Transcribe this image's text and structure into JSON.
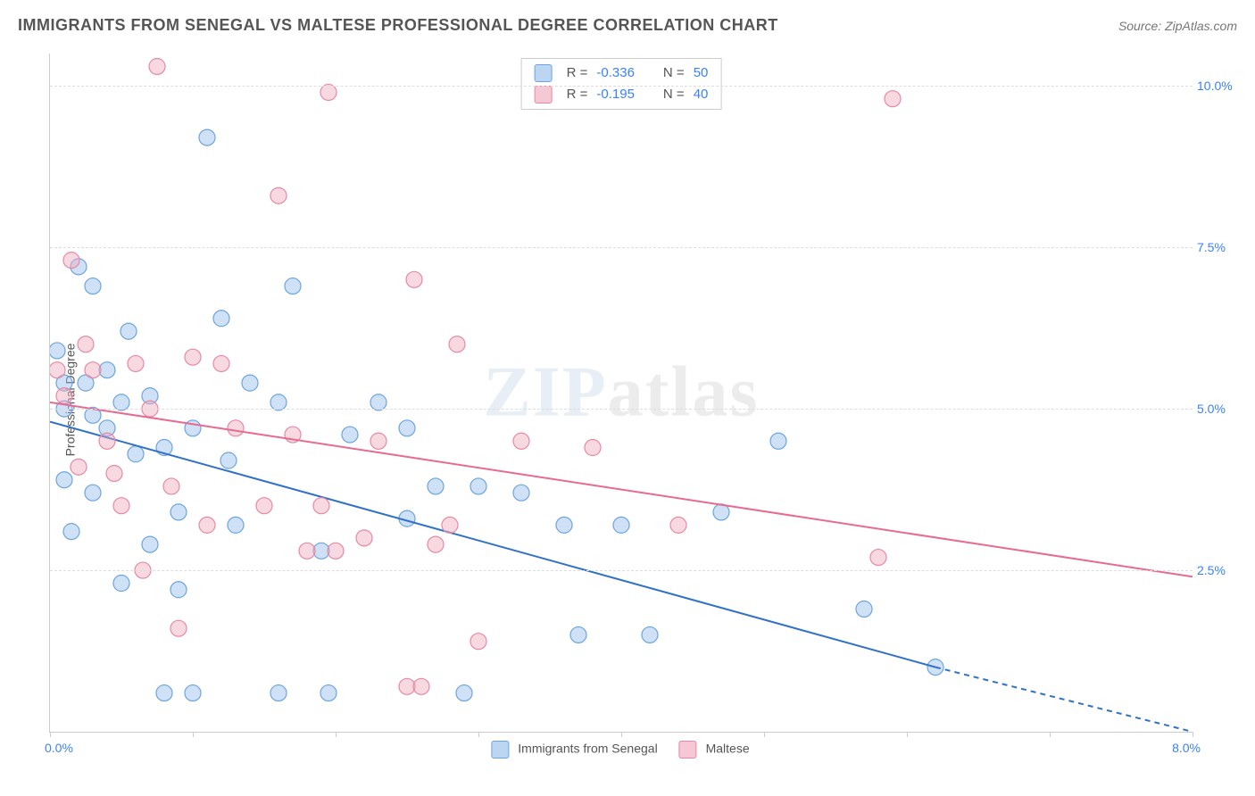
{
  "title": "IMMIGRANTS FROM SENEGAL VS MALTESE PROFESSIONAL DEGREE CORRELATION CHART",
  "source": "Source: ZipAtlas.com",
  "watermark_zip": "ZIP",
  "watermark_atlas": "atlas",
  "chart": {
    "type": "scatter",
    "background_color": "#ffffff",
    "grid_color": "#dddddd",
    "axis_color": "#cccccc",
    "x_axis": {
      "min": 0.0,
      "max": 8.0,
      "start_label": "0.0%",
      "end_label": "8.0%",
      "tick_positions": [
        0.0,
        1.0,
        2.0,
        3.0,
        4.0,
        5.0,
        6.0,
        7.0,
        8.0
      ]
    },
    "y_axis": {
      "title": "Professional Degree",
      "min": 0.0,
      "max": 10.5,
      "ticks": [
        {
          "value": 2.5,
          "label": "2.5%"
        },
        {
          "value": 5.0,
          "label": "5.0%"
        },
        {
          "value": 7.5,
          "label": "7.5%"
        },
        {
          "value": 10.0,
          "label": "10.0%"
        }
      ]
    },
    "marker_radius": 9,
    "marker_stroke_width": 1.2,
    "line_width": 2,
    "series": [
      {
        "name": "Immigrants from Senegal",
        "fill_color": "rgba(148, 189, 234, 0.45)",
        "stroke_color": "#6ea4dd",
        "line_color": "#3071c9",
        "swatch_fill": "#bcd6f2",
        "swatch_border": "#6ea4dd",
        "stats": {
          "R_label": "R =",
          "R": "-0.336",
          "N_label": "N =",
          "N": "50"
        },
        "regression": {
          "x1": 0.0,
          "y1": 4.8,
          "x2": 6.2,
          "y2": 1.0,
          "extend_to_x": 8.0,
          "extend_to_y": 0.0
        },
        "points": [
          [
            0.05,
            5.9
          ],
          [
            0.1,
            5.4
          ],
          [
            0.1,
            5.0
          ],
          [
            0.1,
            3.9
          ],
          [
            0.15,
            3.1
          ],
          [
            0.2,
            7.2
          ],
          [
            0.25,
            5.4
          ],
          [
            0.3,
            4.9
          ],
          [
            0.3,
            3.7
          ],
          [
            0.3,
            6.9
          ],
          [
            0.4,
            5.6
          ],
          [
            0.4,
            4.7
          ],
          [
            0.5,
            5.1
          ],
          [
            0.5,
            2.3
          ],
          [
            0.55,
            6.2
          ],
          [
            0.6,
            4.3
          ],
          [
            0.7,
            5.2
          ],
          [
            0.7,
            2.9
          ],
          [
            0.8,
            4.4
          ],
          [
            0.8,
            0.6
          ],
          [
            0.9,
            3.4
          ],
          [
            0.9,
            2.2
          ],
          [
            1.0,
            4.7
          ],
          [
            1.0,
            0.6
          ],
          [
            1.1,
            9.2
          ],
          [
            1.2,
            6.4
          ],
          [
            1.25,
            4.2
          ],
          [
            1.3,
            3.2
          ],
          [
            1.4,
            5.4
          ],
          [
            1.6,
            5.1
          ],
          [
            1.6,
            0.6
          ],
          [
            1.7,
            6.9
          ],
          [
            1.9,
            2.8
          ],
          [
            1.95,
            0.6
          ],
          [
            2.1,
            4.6
          ],
          [
            2.3,
            5.1
          ],
          [
            2.5,
            3.3
          ],
          [
            2.5,
            4.7
          ],
          [
            2.7,
            3.8
          ],
          [
            2.9,
            0.6
          ],
          [
            3.0,
            3.8
          ],
          [
            3.3,
            3.7
          ],
          [
            3.6,
            3.2
          ],
          [
            3.7,
            1.5
          ],
          [
            4.0,
            3.2
          ],
          [
            4.2,
            1.5
          ],
          [
            4.7,
            3.4
          ],
          [
            5.1,
            4.5
          ],
          [
            5.7,
            1.9
          ],
          [
            6.2,
            1.0
          ]
        ]
      },
      {
        "name": "Maltese",
        "fill_color": "rgba(240, 170, 190, 0.45)",
        "stroke_color": "#e58aa3",
        "line_color": "#e86b8f",
        "swatch_fill": "#f6c7d4",
        "swatch_border": "#e58aa3",
        "stats": {
          "R_label": "R =",
          "R": "-0.195",
          "N_label": "N =",
          "N": "40"
        },
        "regression": {
          "x1": 0.0,
          "y1": 5.1,
          "x2": 8.0,
          "y2": 2.4
        },
        "points": [
          [
            0.05,
            5.6
          ],
          [
            0.1,
            5.2
          ],
          [
            0.15,
            7.3
          ],
          [
            0.2,
            4.1
          ],
          [
            0.25,
            6.0
          ],
          [
            0.3,
            5.6
          ],
          [
            0.4,
            4.5
          ],
          [
            0.45,
            4.0
          ],
          [
            0.5,
            3.5
          ],
          [
            0.6,
            5.7
          ],
          [
            0.65,
            2.5
          ],
          [
            0.7,
            5.0
          ],
          [
            0.75,
            10.3
          ],
          [
            0.85,
            3.8
          ],
          [
            0.9,
            1.6
          ],
          [
            1.0,
            5.8
          ],
          [
            1.1,
            3.2
          ],
          [
            1.2,
            5.7
          ],
          [
            1.3,
            4.7
          ],
          [
            1.5,
            3.5
          ],
          [
            1.6,
            8.3
          ],
          [
            1.7,
            4.6
          ],
          [
            1.8,
            2.8
          ],
          [
            1.9,
            3.5
          ],
          [
            1.95,
            9.9
          ],
          [
            2.0,
            2.8
          ],
          [
            2.2,
            3.0
          ],
          [
            2.3,
            4.5
          ],
          [
            2.5,
            0.7
          ],
          [
            2.55,
            7.0
          ],
          [
            2.6,
            0.7
          ],
          [
            2.7,
            2.9
          ],
          [
            2.8,
            3.2
          ],
          [
            2.85,
            6.0
          ],
          [
            3.0,
            1.4
          ],
          [
            3.3,
            4.5
          ],
          [
            3.8,
            4.4
          ],
          [
            4.4,
            3.2
          ],
          [
            5.8,
            2.7
          ],
          [
            5.9,
            9.8
          ]
        ]
      }
    ]
  },
  "bottom_legend": {
    "s1_label": "Immigrants from Senegal",
    "s2_label": "Maltese"
  }
}
